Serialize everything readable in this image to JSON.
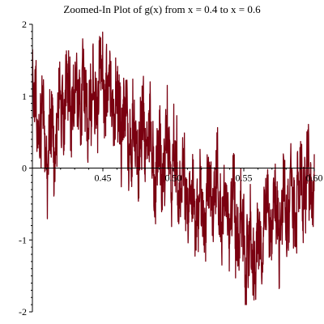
{
  "chart_data": {
    "type": "line",
    "title": "Zoomed-In Plot of g(x) from x = 0.4 to x = 0.6",
    "xlabel": "",
    "ylabel": "",
    "xlim": [
      0.4,
      0.6
    ],
    "ylim": [
      -2,
      2
    ],
    "x_ticks": [
      {
        "value": 0.45,
        "label": "0.45"
      },
      {
        "value": 0.5,
        "label": "0.50"
      },
      {
        "value": 0.55,
        "label": "0.55"
      },
      {
        "value": 0.6,
        "label": "0.60"
      }
    ],
    "y_ticks": [
      {
        "value": 2,
        "label": "2"
      },
      {
        "value": 1,
        "label": "1"
      },
      {
        "value": 0,
        "label": "0"
      },
      {
        "value": -1,
        "label": "-1"
      },
      {
        "value": -2,
        "label": "-2"
      }
    ],
    "grid": false,
    "legend": "none",
    "series": [
      {
        "color": "#7a0010",
        "envelope_x": [
          0.4,
          0.405,
          0.41,
          0.415,
          0.42,
          0.425,
          0.43,
          0.435,
          0.44,
          0.445,
          0.45,
          0.455,
          0.46,
          0.465,
          0.47,
          0.475,
          0.48,
          0.485,
          0.49,
          0.495,
          0.5,
          0.505,
          0.51,
          0.515,
          0.52,
          0.525,
          0.53,
          0.535,
          0.54,
          0.545,
          0.55,
          0.555,
          0.56,
          0.565,
          0.57,
          0.575,
          0.58,
          0.585,
          0.59,
          0.595,
          0.6
        ],
        "envelope_y": [
          0.9,
          0.7,
          0.3,
          0.4,
          0.8,
          1.0,
          0.9,
          1.1,
          0.8,
          1.1,
          1.3,
          1.0,
          0.8,
          0.7,
          0.4,
          0.3,
          0.5,
          0.2,
          0.0,
          0.2,
          0.1,
          -0.2,
          -0.4,
          -0.5,
          -0.7,
          -0.4,
          -0.3,
          -0.6,
          -0.5,
          -0.8,
          -1.1,
          -1.2,
          -1.2,
          -0.7,
          -0.6,
          -0.7,
          -0.5,
          -0.6,
          -0.3,
          -0.2,
          -0.3
        ],
        "approx_range": [
          -1.9,
          1.95
        ]
      }
    ]
  }
}
